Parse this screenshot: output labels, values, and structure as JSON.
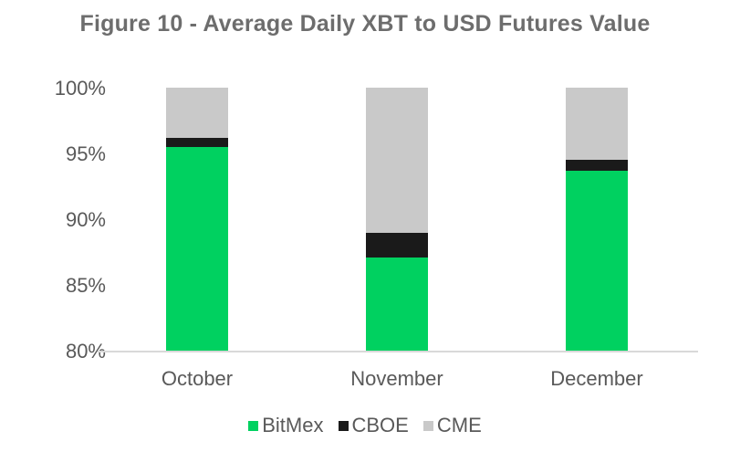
{
  "chart_data": {
    "type": "bar",
    "stacked": true,
    "title": "Figure 10 - Average Daily XBT to USD Futures Value",
    "xlabel": "",
    "ylabel": "",
    "ylim": [
      0.8,
      1.0
    ],
    "yticks": [
      "80%",
      "85%",
      "90%",
      "95%",
      "100%"
    ],
    "categories": [
      "October",
      "November",
      "December"
    ],
    "series": [
      {
        "name": "BitMex",
        "color": "#00d160",
        "values": [
          95.5,
          87.1,
          93.7
        ]
      },
      {
        "name": "CBOE",
        "color": "#1a1a1a",
        "values": [
          0.7,
          1.9,
          0.8
        ]
      },
      {
        "name": "CME",
        "color": "#c9c9c9",
        "values": [
          3.8,
          11.0,
          5.5
        ]
      }
    ],
    "grid": false,
    "legend_position": "bottom"
  },
  "title": "Figure 10 - Average Daily XBT to USD Futures Value",
  "yticks": [
    "100%",
    "95%",
    "90%",
    "85%",
    "80%"
  ],
  "xlabels": [
    "October",
    "November",
    "December"
  ],
  "legend": [
    "BitMex",
    "CBOE",
    "CME"
  ]
}
